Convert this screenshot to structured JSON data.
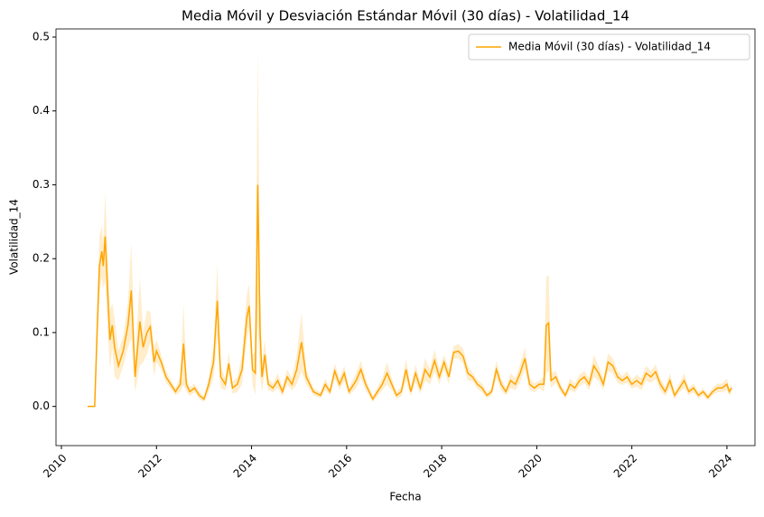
{
  "chart_data": {
    "type": "line",
    "title": "Media Móvil y Desviación Estándar Móvil (30 días) - Volatilidad_14",
    "x_label": "Fecha",
    "y_label": "Volatilidad_14",
    "x": [
      2010.55,
      2010.7,
      2010.75,
      2010.8,
      2010.85,
      2010.88,
      2010.92,
      2010.97,
      2011.02,
      2011.07,
      2011.12,
      2011.2,
      2011.3,
      2011.4,
      2011.47,
      2011.55,
      2011.65,
      2011.72,
      2011.8,
      2011.87,
      2011.95,
      2012.0,
      2012.1,
      2012.2,
      2012.3,
      2012.4,
      2012.5,
      2012.57,
      2012.63,
      2012.7,
      2012.8,
      2012.9,
      2013.0,
      2013.1,
      2013.2,
      2013.28,
      2013.35,
      2013.45,
      2013.52,
      2013.6,
      2013.7,
      2013.8,
      2013.9,
      2013.95,
      2014.02,
      2014.08,
      2014.13,
      2014.18,
      2014.22,
      2014.28,
      2014.35,
      2014.45,
      2014.55,
      2014.65,
      2014.75,
      2014.85,
      2014.95,
      2015.05,
      2015.15,
      2015.3,
      2015.45,
      2015.55,
      2015.65,
      2015.75,
      2015.85,
      2015.95,
      2016.05,
      2016.2,
      2016.3,
      2016.4,
      2016.55,
      2016.65,
      2016.75,
      2016.85,
      2016.95,
      2017.05,
      2017.15,
      2017.25,
      2017.35,
      2017.45,
      2017.55,
      2017.65,
      2017.75,
      2017.85,
      2017.95,
      2018.05,
      2018.15,
      2018.25,
      2018.35,
      2018.45,
      2018.55,
      2018.65,
      2018.75,
      2018.85,
      2018.95,
      2019.05,
      2019.15,
      2019.25,
      2019.35,
      2019.45,
      2019.55,
      2019.65,
      2019.75,
      2019.85,
      2019.95,
      2020.05,
      2020.15,
      2020.2,
      2020.25,
      2020.3,
      2020.4,
      2020.5,
      2020.6,
      2020.7,
      2020.8,
      2020.9,
      2021.0,
      2021.1,
      2021.2,
      2021.3,
      2021.4,
      2021.5,
      2021.6,
      2021.7,
      2021.8,
      2021.9,
      2022.0,
      2022.1,
      2022.2,
      2022.3,
      2022.4,
      2022.5,
      2022.6,
      2022.7,
      2022.8,
      2022.9,
      2023.0,
      2023.1,
      2023.2,
      2023.3,
      2023.4,
      2023.5,
      2023.6,
      2023.7,
      2023.8,
      2023.9,
      2024.0,
      2024.05,
      2024.1
    ],
    "series": [
      {
        "name": "Media Móvil (30 días) - Volatilidad_14",
        "color": "#ffa500",
        "values": [
          0,
          0,
          0.1,
          0.19,
          0.21,
          0.19,
          0.23,
          0.16,
          0.09,
          0.11,
          0.08,
          0.055,
          0.075,
          0.11,
          0.157,
          0.04,
          0.115,
          0.08,
          0.1,
          0.108,
          0.06,
          0.075,
          0.06,
          0.04,
          0.03,
          0.02,
          0.03,
          0.085,
          0.03,
          0.02,
          0.025,
          0.015,
          0.01,
          0.03,
          0.06,
          0.143,
          0.04,
          0.03,
          0.058,
          0.025,
          0.03,
          0.05,
          0.12,
          0.136,
          0.05,
          0.045,
          0.3,
          0.1,
          0.04,
          0.07,
          0.03,
          0.025,
          0.035,
          0.02,
          0.04,
          0.03,
          0.05,
          0.087,
          0.04,
          0.02,
          0.015,
          0.03,
          0.02,
          0.048,
          0.03,
          0.045,
          0.02,
          0.035,
          0.05,
          0.03,
          0.01,
          0.02,
          0.03,
          0.045,
          0.03,
          0.015,
          0.02,
          0.05,
          0.02,
          0.045,
          0.025,
          0.05,
          0.04,
          0.062,
          0.04,
          0.06,
          0.04,
          0.073,
          0.075,
          0.068,
          0.045,
          0.04,
          0.03,
          0.025,
          0.015,
          0.02,
          0.05,
          0.03,
          0.02,
          0.035,
          0.03,
          0.045,
          0.065,
          0.03,
          0.025,
          0.03,
          0.03,
          0.11,
          0.113,
          0.035,
          0.04,
          0.025,
          0.015,
          0.03,
          0.025,
          0.035,
          0.04,
          0.03,
          0.055,
          0.045,
          0.03,
          0.06,
          0.055,
          0.04,
          0.035,
          0.04,
          0.03,
          0.035,
          0.03,
          0.045,
          0.04,
          0.047,
          0.03,
          0.02,
          0.035,
          0.015,
          0.025,
          0.035,
          0.02,
          0.025,
          0.015,
          0.02,
          0.012,
          0.02,
          0.025,
          0.025,
          0.03,
          0.02,
          0.025
        ],
        "std": [
          0,
          0.001,
          0.03,
          0.04,
          0.035,
          0.03,
          0.06,
          0.05,
          0.04,
          0.03,
          0.04,
          0.02,
          0.02,
          0.03,
          0.065,
          0.02,
          0.06,
          0.02,
          0.03,
          0.02,
          0.02,
          0.015,
          0.01,
          0.008,
          0.006,
          0.005,
          0.01,
          0.055,
          0.01,
          0.006,
          0.006,
          0.005,
          0.004,
          0.01,
          0.02,
          0.05,
          0.015,
          0.008,
          0.015,
          0.008,
          0.01,
          0.02,
          0.03,
          0.03,
          0.02,
          0.03,
          0.185,
          0.06,
          0.02,
          0.02,
          0.008,
          0.006,
          0.01,
          0.006,
          0.01,
          0.008,
          0.02,
          0.04,
          0.01,
          0.005,
          0.004,
          0.008,
          0.005,
          0.01,
          0.008,
          0.01,
          0.005,
          0.01,
          0.012,
          0.008,
          0.004,
          0.006,
          0.008,
          0.015,
          0.008,
          0.005,
          0.006,
          0.015,
          0.006,
          0.012,
          0.008,
          0.015,
          0.01,
          0.015,
          0.01,
          0.01,
          0.01,
          0.008,
          0.01,
          0.01,
          0.01,
          0.006,
          0.006,
          0.006,
          0.004,
          0.005,
          0.012,
          0.008,
          0.005,
          0.01,
          0.008,
          0.012,
          0.015,
          0.008,
          0.006,
          0.005,
          0.01,
          0.065,
          0.065,
          0.01,
          0.008,
          0.006,
          0.004,
          0.008,
          0.006,
          0.008,
          0.008,
          0.008,
          0.015,
          0.01,
          0.008,
          0.012,
          0.01,
          0.008,
          0.006,
          0.008,
          0.006,
          0.008,
          0.008,
          0.01,
          0.008,
          0.01,
          0.008,
          0.006,
          0.01,
          0.005,
          0.006,
          0.01,
          0.005,
          0.006,
          0.004,
          0.005,
          0.004,
          0.005,
          0.006,
          0.006,
          0.008,
          0.005,
          0.006
        ]
      }
    ],
    "xlim": [
      2009.886,
      2024.59
    ],
    "xticks": [
      2010,
      2012,
      2014,
      2016,
      2018,
      2020,
      2022,
      2024
    ],
    "ylim": [
      -0.053,
      0.511
    ],
    "yticks": [
      {
        "value": 0,
        "label": "0.0"
      },
      0.1,
      0.2,
      0.3,
      0.4,
      0.5
    ],
    "legend": "upper right",
    "grid": false
  }
}
